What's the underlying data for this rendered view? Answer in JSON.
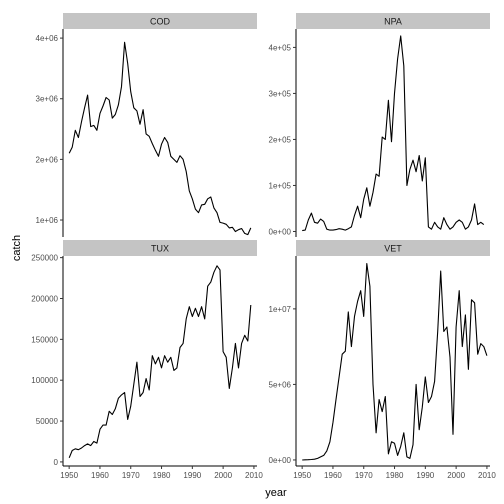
{
  "chart_data": {
    "type": "line",
    "facet_layout": "2x2 grid, free y scales, shared x",
    "xlabel": "year",
    "ylabel": "catch",
    "x_ticks": [
      1950,
      1960,
      1970,
      1980,
      1990,
      2000,
      2010
    ],
    "xlim": [
      1948,
      2011
    ],
    "panels": [
      {
        "strip": "COD",
        "ylim": [
          720000,
          4150000
        ],
        "y_ticks": [
          1000000,
          2000000,
          3000000,
          4000000
        ],
        "y_tick_labels": [
          "1e+06",
          "2e+06",
          "3e+06",
          "4e+06"
        ],
        "points": [
          [
            1950,
            2100000
          ],
          [
            1951,
            2200000
          ],
          [
            1952,
            2480000
          ],
          [
            1953,
            2360000
          ],
          [
            1954,
            2620000
          ],
          [
            1955,
            2850000
          ],
          [
            1956,
            3060000
          ],
          [
            1957,
            2540000
          ],
          [
            1958,
            2560000
          ],
          [
            1959,
            2480000
          ],
          [
            1960,
            2760000
          ],
          [
            1961,
            2880000
          ],
          [
            1962,
            3020000
          ],
          [
            1963,
            2980000
          ],
          [
            1964,
            2680000
          ],
          [
            1965,
            2740000
          ],
          [
            1966,
            2900000
          ],
          [
            1967,
            3200000
          ],
          [
            1968,
            3930000
          ],
          [
            1969,
            3580000
          ],
          [
            1970,
            3120000
          ],
          [
            1971,
            2850000
          ],
          [
            1972,
            2800000
          ],
          [
            1973,
            2580000
          ],
          [
            1974,
            2820000
          ],
          [
            1975,
            2420000
          ],
          [
            1976,
            2380000
          ],
          [
            1977,
            2260000
          ],
          [
            1978,
            2150000
          ],
          [
            1979,
            2050000
          ],
          [
            1980,
            2250000
          ],
          [
            1981,
            2360000
          ],
          [
            1982,
            2280000
          ],
          [
            1983,
            2050000
          ],
          [
            1984,
            2000000
          ],
          [
            1985,
            1950000
          ],
          [
            1986,
            2060000
          ],
          [
            1987,
            2000000
          ],
          [
            1988,
            1800000
          ],
          [
            1989,
            1480000
          ],
          [
            1990,
            1350000
          ],
          [
            1991,
            1180000
          ],
          [
            1992,
            1120000
          ],
          [
            1993,
            1250000
          ],
          [
            1994,
            1260000
          ],
          [
            1995,
            1350000
          ],
          [
            1996,
            1380000
          ],
          [
            1997,
            1200000
          ],
          [
            1998,
            1120000
          ],
          [
            1999,
            960000
          ],
          [
            2000,
            950000
          ],
          [
            2001,
            930000
          ],
          [
            2002,
            870000
          ],
          [
            2003,
            880000
          ],
          [
            2004,
            810000
          ],
          [
            2005,
            840000
          ],
          [
            2006,
            860000
          ],
          [
            2007,
            780000
          ],
          [
            2008,
            760000
          ],
          [
            2009,
            870000
          ]
        ]
      },
      {
        "strip": "NPA",
        "ylim": [
          -12000,
          440000
        ],
        "y_ticks": [
          0,
          100000,
          200000,
          300000,
          400000
        ],
        "y_tick_labels": [
          "0e+00",
          "1e+05",
          "2e+05",
          "3e+05",
          "4e+05"
        ],
        "points": [
          [
            1950,
            2000
          ],
          [
            1951,
            3000
          ],
          [
            1952,
            25000
          ],
          [
            1953,
            40000
          ],
          [
            1954,
            20000
          ],
          [
            1955,
            18000
          ],
          [
            1956,
            27000
          ],
          [
            1957,
            22000
          ],
          [
            1958,
            5000
          ],
          [
            1959,
            3000
          ],
          [
            1960,
            3000
          ],
          [
            1961,
            4000
          ],
          [
            1962,
            6000
          ],
          [
            1963,
            5000
          ],
          [
            1964,
            3000
          ],
          [
            1965,
            6000
          ],
          [
            1966,
            10000
          ],
          [
            1967,
            35000
          ],
          [
            1968,
            55000
          ],
          [
            1969,
            30000
          ],
          [
            1970,
            70000
          ],
          [
            1971,
            95000
          ],
          [
            1972,
            55000
          ],
          [
            1973,
            85000
          ],
          [
            1974,
            125000
          ],
          [
            1975,
            120000
          ],
          [
            1976,
            205000
          ],
          [
            1977,
            200000
          ],
          [
            1978,
            285000
          ],
          [
            1979,
            195000
          ],
          [
            1980,
            300000
          ],
          [
            1981,
            375000
          ],
          [
            1982,
            425000
          ],
          [
            1983,
            360000
          ],
          [
            1984,
            100000
          ],
          [
            1985,
            135000
          ],
          [
            1986,
            155000
          ],
          [
            1987,
            130000
          ],
          [
            1988,
            165000
          ],
          [
            1989,
            110000
          ],
          [
            1990,
            160000
          ],
          [
            1991,
            10000
          ],
          [
            1992,
            5000
          ],
          [
            1993,
            20000
          ],
          [
            1994,
            10000
          ],
          [
            1995,
            5000
          ],
          [
            1996,
            30000
          ],
          [
            1997,
            15000
          ],
          [
            1998,
            5000
          ],
          [
            1999,
            10000
          ],
          [
            2000,
            20000
          ],
          [
            2001,
            25000
          ],
          [
            2002,
            20000
          ],
          [
            2003,
            5000
          ],
          [
            2004,
            10000
          ],
          [
            2005,
            25000
          ],
          [
            2006,
            60000
          ],
          [
            2007,
            15000
          ],
          [
            2008,
            20000
          ],
          [
            2009,
            15000
          ]
        ]
      },
      {
        "strip": "TUX",
        "ylim": [
          -5000,
          252000
        ],
        "y_ticks": [
          0,
          50000,
          100000,
          150000,
          200000,
          250000
        ],
        "y_tick_labels": [
          "0",
          "50000",
          "100000",
          "150000",
          "200000",
          "250000"
        ],
        "points": [
          [
            1950,
            5000
          ],
          [
            1951,
            14000
          ],
          [
            1952,
            16000
          ],
          [
            1953,
            15000
          ],
          [
            1954,
            17000
          ],
          [
            1955,
            20000
          ],
          [
            1956,
            22000
          ],
          [
            1957,
            20000
          ],
          [
            1958,
            25000
          ],
          [
            1959,
            23000
          ],
          [
            1960,
            40000
          ],
          [
            1961,
            45000
          ],
          [
            1962,
            45000
          ],
          [
            1963,
            62000
          ],
          [
            1964,
            58000
          ],
          [
            1965,
            65000
          ],
          [
            1966,
            78000
          ],
          [
            1967,
            82000
          ],
          [
            1968,
            85000
          ],
          [
            1969,
            52000
          ],
          [
            1970,
            68000
          ],
          [
            1971,
            95000
          ],
          [
            1972,
            122000
          ],
          [
            1973,
            80000
          ],
          [
            1974,
            85000
          ],
          [
            1975,
            102000
          ],
          [
            1976,
            88000
          ],
          [
            1977,
            130000
          ],
          [
            1978,
            120000
          ],
          [
            1979,
            128000
          ],
          [
            1980,
            115000
          ],
          [
            1981,
            130000
          ],
          [
            1982,
            122000
          ],
          [
            1983,
            128000
          ],
          [
            1984,
            112000
          ],
          [
            1985,
            115000
          ],
          [
            1986,
            140000
          ],
          [
            1987,
            145000
          ],
          [
            1988,
            175000
          ],
          [
            1989,
            190000
          ],
          [
            1990,
            178000
          ],
          [
            1991,
            188000
          ],
          [
            1992,
            178000
          ],
          [
            1993,
            190000
          ],
          [
            1994,
            175000
          ],
          [
            1995,
            215000
          ],
          [
            1996,
            220000
          ],
          [
            1997,
            232000
          ],
          [
            1998,
            240000
          ],
          [
            1999,
            235000
          ],
          [
            2000,
            135000
          ],
          [
            2001,
            128000
          ],
          [
            2002,
            90000
          ],
          [
            2003,
            115000
          ],
          [
            2004,
            145000
          ],
          [
            2005,
            115000
          ],
          [
            2006,
            145000
          ],
          [
            2007,
            155000
          ],
          [
            2008,
            148000
          ],
          [
            2009,
            192000
          ]
        ]
      },
      {
        "strip": "VET",
        "ylim": [
          -400000,
          13500000
        ],
        "y_ticks": [
          0,
          5000000,
          10000000
        ],
        "y_tick_labels": [
          "0e+00",
          "5e+06",
          "1e+07"
        ],
        "points": [
          [
            1950,
            0
          ],
          [
            1951,
            10000
          ],
          [
            1952,
            20000
          ],
          [
            1953,
            30000
          ],
          [
            1954,
            50000
          ],
          [
            1955,
            100000
          ],
          [
            1956,
            200000
          ],
          [
            1957,
            300000
          ],
          [
            1958,
            600000
          ],
          [
            1959,
            1200000
          ],
          [
            1960,
            2500000
          ],
          [
            1961,
            4000000
          ],
          [
            1962,
            5500000
          ],
          [
            1963,
            7000000
          ],
          [
            1964,
            7200000
          ],
          [
            1965,
            9800000
          ],
          [
            1966,
            7500000
          ],
          [
            1967,
            9500000
          ],
          [
            1968,
            10500000
          ],
          [
            1969,
            11200000
          ],
          [
            1970,
            9500000
          ],
          [
            1971,
            13000000
          ],
          [
            1972,
            11500000
          ],
          [
            1973,
            5000000
          ],
          [
            1974,
            1800000
          ],
          [
            1975,
            4000000
          ],
          [
            1976,
            3200000
          ],
          [
            1977,
            4200000
          ],
          [
            1978,
            400000
          ],
          [
            1979,
            1200000
          ],
          [
            1980,
            1100000
          ],
          [
            1981,
            300000
          ],
          [
            1982,
            900000
          ],
          [
            1983,
            1800000
          ],
          [
            1984,
            200000
          ],
          [
            1985,
            100000
          ],
          [
            1986,
            1000000
          ],
          [
            1987,
            5000000
          ],
          [
            1988,
            2000000
          ],
          [
            1989,
            3500000
          ],
          [
            1990,
            5500000
          ],
          [
            1991,
            3800000
          ],
          [
            1992,
            4200000
          ],
          [
            1993,
            5200000
          ],
          [
            1994,
            8500000
          ],
          [
            1995,
            12500000
          ],
          [
            1996,
            8500000
          ],
          [
            1997,
            8800000
          ],
          [
            1998,
            6800000
          ],
          [
            1999,
            1700000
          ],
          [
            2000,
            8800000
          ],
          [
            2001,
            11200000
          ],
          [
            2002,
            7500000
          ],
          [
            2003,
            9600000
          ],
          [
            2004,
            6000000
          ],
          [
            2005,
            10600000
          ],
          [
            2006,
            10400000
          ],
          [
            2007,
            7000000
          ],
          [
            2008,
            7700000
          ],
          [
            2009,
            7500000
          ],
          [
            2010,
            6900000
          ]
        ]
      }
    ]
  }
}
